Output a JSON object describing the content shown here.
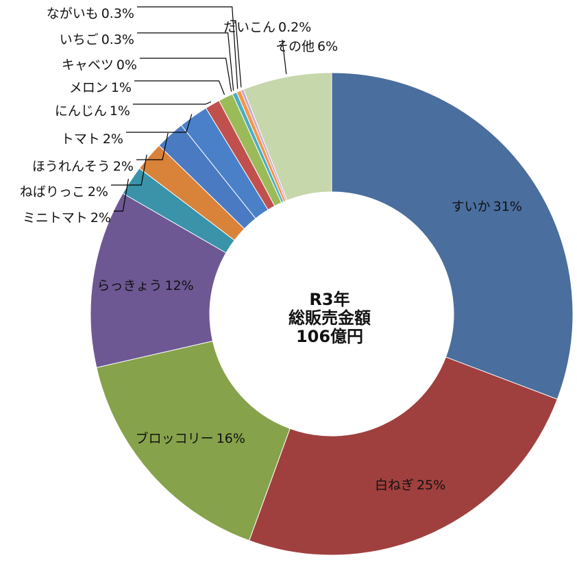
{
  "chart_data": {
    "type": "donut",
    "center_text": [
      "R3年",
      "総販売金額",
      "106億円"
    ],
    "categories": [
      "すいか",
      "白ねぎ",
      "ブロッコリー",
      "らっきょう",
      "ミニトマト",
      "ねばりっこ",
      "ほうれんそう",
      "トマト",
      "にんじん",
      "メロン",
      "キャベツ",
      "いちご",
      "ながいも",
      "だいこん",
      "その他"
    ],
    "values": [
      31,
      25,
      16,
      12,
      2,
      2,
      2,
      2,
      1,
      1,
      0,
      0.3,
      0.3,
      0.2,
      6
    ],
    "value_labels": [
      "31%",
      "25%",
      "16%",
      "12%",
      "2%",
      "2%",
      "2%",
      "2%",
      "1%",
      "1%",
      "0%",
      "0.3%",
      "0.3%",
      "0.2%",
      "6%"
    ],
    "colors": [
      "#4a6e9e",
      "#a0403e",
      "#86a24a",
      "#6d5893",
      "#3a93a8",
      "#d9823a",
      "#4a7bc2",
      "#4a80c8",
      "#c0504d",
      "#9bbb59",
      "#8064a2",
      "#4bacc6",
      "#f79646",
      "#c9a7cf",
      "#c6d7ab"
    ]
  }
}
